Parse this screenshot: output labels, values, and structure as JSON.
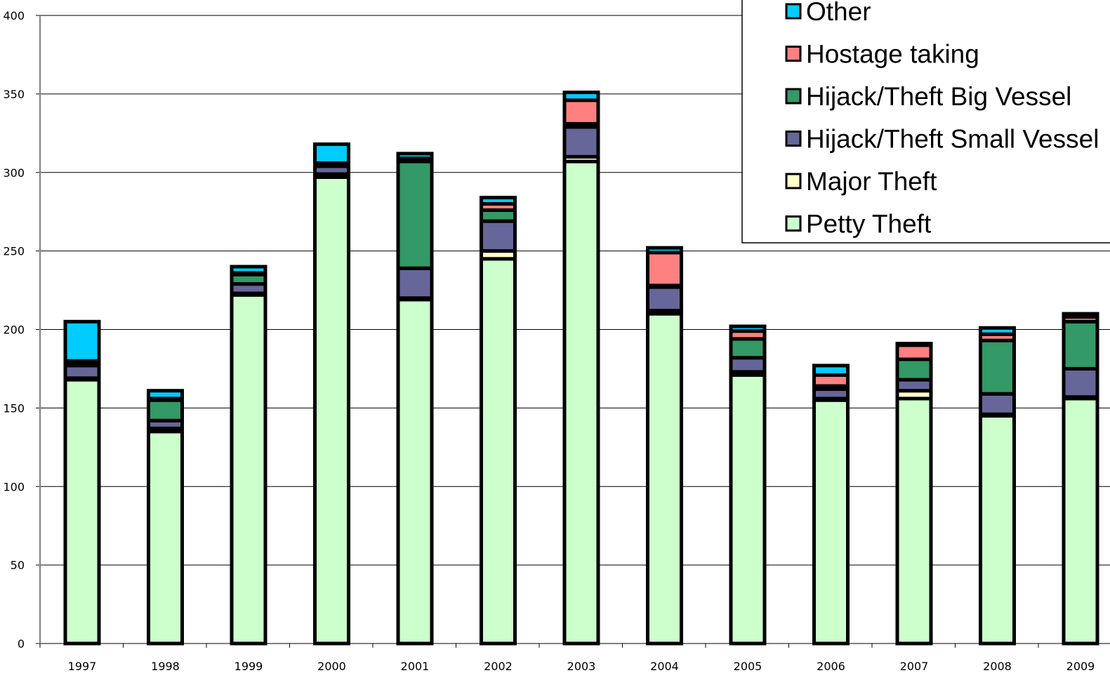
{
  "chart_data": {
    "type": "bar",
    "stacked": true,
    "title": "",
    "xlabel": "",
    "ylabel": "",
    "ylim": [
      0,
      400
    ],
    "yticks": [
      0,
      50,
      100,
      150,
      200,
      250,
      300,
      350,
      400
    ],
    "grid": true,
    "legend_position": "top-right",
    "categories": [
      "1997",
      "1998",
      "1999",
      "2000",
      "2001",
      "2002",
      "2003",
      "2004",
      "2005",
      "2006",
      "2007",
      "2008",
      "2009"
    ],
    "series": [
      {
        "name": "Petty Theft",
        "color": "#ccffcc",
        "values": [
          168,
          135,
          222,
          297,
          219,
          245,
          307,
          210,
          171,
          155,
          156,
          145,
          156
        ]
      },
      {
        "name": "Major Theft",
        "color": "#ffffcc",
        "values": [
          1,
          2,
          1,
          2,
          1,
          5,
          3,
          2,
          2,
          1,
          5,
          1,
          1
        ]
      },
      {
        "name": "Hijack/Theft Small Vessel",
        "color": "#666699",
        "values": [
          8,
          5,
          6,
          5,
          19,
          19,
          19,
          15,
          9,
          6,
          7,
          13,
          18
        ]
      },
      {
        "name": "Hijack/Theft Big Vessel",
        "color": "#339966",
        "values": [
          2,
          13,
          6,
          1,
          68,
          7,
          2,
          1,
          12,
          2,
          13,
          34,
          30
        ]
      },
      {
        "name": "Hostage taking",
        "color": "#ff8080",
        "values": [
          1,
          1,
          1,
          1,
          2,
          4,
          15,
          21,
          5,
          7,
          9,
          4,
          3
        ]
      },
      {
        "name": "Other",
        "color": "#00ccff",
        "values": [
          25,
          5,
          4,
          12,
          3,
          4,
          5,
          3,
          3,
          6,
          1,
          4,
          2
        ]
      }
    ],
    "legend_order": [
      "Other",
      "Hostage taking",
      "Hijack/Theft Big Vessel",
      "Hijack/Theft Small Vessel",
      "Major Theft",
      "Petty Theft"
    ]
  }
}
